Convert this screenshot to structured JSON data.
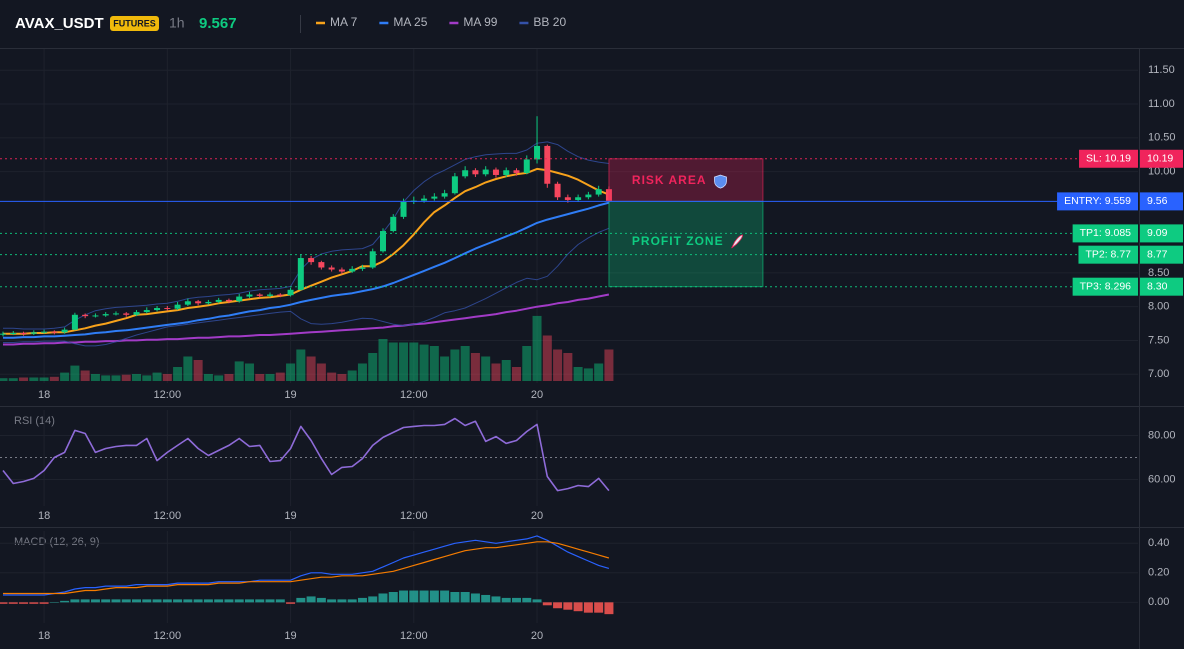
{
  "chart_data": [
    {
      "type": "candlestick",
      "title": "AVAX_USDT",
      "badge": "FUTURES",
      "interval": "1h",
      "last_price": 9.567,
      "categories": [
        null,
        null,
        null,
        null,
        "18",
        null,
        null,
        null,
        null,
        null,
        null,
        null,
        null,
        null,
        null,
        null,
        "12:00",
        null,
        null,
        null,
        null,
        null,
        null,
        null,
        null,
        null,
        null,
        null,
        "19",
        null,
        null,
        null,
        null,
        null,
        null,
        null,
        null,
        null,
        null,
        null,
        "12:00",
        null,
        null,
        null,
        null,
        null,
        null,
        null,
        null,
        null,
        null,
        null,
        "20",
        null,
        null,
        null,
        null,
        null,
        null,
        null
      ],
      "open": [
        7.59,
        7.6,
        7.61,
        7.6,
        7.62,
        7.63,
        7.62,
        7.66,
        7.88,
        7.86,
        7.87,
        7.89,
        7.9,
        7.88,
        7.92,
        7.95,
        7.98,
        7.97,
        8.03,
        8.08,
        8.05,
        8.07,
        8.1,
        8.08,
        8.15,
        8.18,
        8.16,
        8.18,
        8.17,
        8.25,
        8.72,
        8.66,
        8.58,
        8.55,
        8.52,
        8.56,
        8.58,
        8.82,
        9.12,
        9.33,
        9.55,
        9.57,
        9.6,
        9.63,
        9.68,
        9.93,
        10.02,
        9.96,
        10.03,
        9.95,
        10.02,
        9.98,
        10.18,
        10.38,
        9.82,
        9.62,
        9.58,
        9.62,
        9.66,
        9.74
      ],
      "high": [
        7.63,
        7.64,
        7.63,
        7.65,
        7.66,
        7.65,
        7.69,
        7.91,
        7.9,
        7.9,
        7.92,
        7.93,
        7.92,
        7.95,
        7.99,
        8.01,
        8.01,
        8.07,
        8.12,
        8.1,
        8.1,
        8.13,
        8.12,
        8.19,
        8.22,
        8.2,
        8.21,
        8.2,
        8.28,
        8.78,
        8.75,
        8.68,
        8.61,
        8.58,
        8.6,
        8.62,
        8.86,
        9.16,
        9.37,
        9.6,
        9.63,
        9.65,
        9.68,
        9.73,
        9.98,
        10.08,
        10.05,
        10.08,
        10.06,
        10.06,
        10.05,
        10.24,
        10.82,
        10.4,
        9.85,
        9.66,
        9.66,
        9.7,
        9.79,
        9.78
      ],
      "low": [
        7.56,
        7.58,
        7.57,
        7.58,
        7.6,
        7.59,
        7.6,
        7.65,
        7.83,
        7.84,
        7.85,
        7.87,
        7.85,
        7.86,
        7.9,
        7.93,
        7.94,
        7.95,
        8.01,
        8.02,
        8.03,
        8.05,
        8.05,
        8.06,
        8.13,
        8.13,
        8.14,
        8.14,
        8.15,
        8.24,
        8.62,
        8.55,
        8.52,
        8.48,
        8.5,
        8.53,
        8.56,
        8.8,
        9.1,
        9.3,
        9.52,
        9.54,
        9.57,
        9.6,
        9.66,
        9.9,
        9.92,
        9.93,
        9.91,
        9.92,
        9.94,
        9.96,
        10.12,
        9.76,
        9.58,
        9.54,
        9.55,
        9.59,
        9.63,
        9.54
      ],
      "close": [
        7.6,
        7.61,
        7.6,
        7.62,
        7.63,
        7.62,
        7.66,
        7.88,
        7.86,
        7.87,
        7.89,
        7.9,
        7.88,
        7.92,
        7.95,
        7.98,
        7.97,
        8.03,
        8.08,
        8.05,
        8.07,
        8.1,
        8.08,
        8.15,
        8.18,
        8.16,
        8.18,
        8.17,
        8.25,
        8.72,
        8.66,
        8.58,
        8.55,
        8.52,
        8.56,
        8.58,
        8.82,
        9.12,
        9.33,
        9.55,
        9.57,
        9.6,
        9.63,
        9.68,
        9.93,
        10.02,
        9.96,
        10.03,
        9.95,
        10.02,
        9.98,
        10.18,
        10.38,
        9.82,
        9.62,
        9.58,
        9.62,
        9.66,
        9.74,
        9.567
      ],
      "up_color": "#0ecb81",
      "down_color": "#f6465d",
      "volume": [
        4,
        4,
        5,
        5,
        5,
        6,
        12,
        22,
        15,
        10,
        8,
        8,
        9,
        10,
        8,
        12,
        10,
        20,
        35,
        30,
        10,
        8,
        10,
        28,
        25,
        10,
        10,
        12,
        25,
        45,
        35,
        25,
        12,
        10,
        15,
        25,
        40,
        60,
        55,
        55,
        55,
        52,
        50,
        35,
        45,
        50,
        40,
        35,
        25,
        30,
        20,
        50,
        93,
        65,
        45,
        40,
        20,
        18,
        25,
        45
      ],
      "vlim": [
        0,
        100
      ],
      "series": [
        {
          "name": "MA 7",
          "color": "#f7a21b",
          "values": [
            7.6,
            7.6,
            7.6,
            7.61,
            7.61,
            7.62,
            7.62,
            7.65,
            7.68,
            7.72,
            7.75,
            7.79,
            7.83,
            7.88,
            7.89,
            7.91,
            7.93,
            7.95,
            7.98,
            8.0,
            8.02,
            8.05,
            8.07,
            8.09,
            8.11,
            8.13,
            8.14,
            8.16,
            8.18,
            8.25,
            8.31,
            8.37,
            8.43,
            8.48,
            8.53,
            8.6,
            8.6,
            8.67,
            8.78,
            8.91,
            9.07,
            9.25,
            9.4,
            9.5,
            9.61,
            9.71,
            9.77,
            9.84,
            9.89,
            9.93,
            9.96,
            9.98,
            10.04,
            10.02,
            9.98,
            9.94,
            9.88,
            9.8,
            9.72,
            9.66
          ]
        },
        {
          "name": "MA 25",
          "color": "#2f7df6",
          "values": [
            7.54,
            7.54,
            7.55,
            7.55,
            7.56,
            7.56,
            7.57,
            7.58,
            7.59,
            7.61,
            7.62,
            7.64,
            7.65,
            7.67,
            7.69,
            7.71,
            7.73,
            7.75,
            7.77,
            7.8,
            7.82,
            7.85,
            7.87,
            7.9,
            7.93,
            7.95,
            7.98,
            8.0,
            8.03,
            8.07,
            8.1,
            8.13,
            8.16,
            8.18,
            8.2,
            8.23,
            8.26,
            8.3,
            8.35,
            8.41,
            8.47,
            8.53,
            8.59,
            8.65,
            8.72,
            8.79,
            8.86,
            8.92,
            8.98,
            9.04,
            9.1,
            9.17,
            9.24,
            9.29,
            9.33,
            9.37,
            9.41,
            9.45,
            9.5,
            9.54
          ]
        },
        {
          "name": "MA 99",
          "color": "#a23bc7",
          "values": [
            7.44,
            7.44,
            7.45,
            7.45,
            7.46,
            7.46,
            7.47,
            7.47,
            7.48,
            7.48,
            7.49,
            7.49,
            7.5,
            7.5,
            7.51,
            7.51,
            7.52,
            7.52,
            7.53,
            7.54,
            7.54,
            7.55,
            7.56,
            7.56,
            7.57,
            7.58,
            7.58,
            7.59,
            7.6,
            7.61,
            7.62,
            7.63,
            7.64,
            7.65,
            7.66,
            7.67,
            7.68,
            7.69,
            7.71,
            7.72,
            7.74,
            7.75,
            7.77,
            7.79,
            7.81,
            7.83,
            7.85,
            7.87,
            7.89,
            7.92,
            7.94,
            7.97,
            8.0,
            8.02,
            8.05,
            8.07,
            8.1,
            8.12,
            8.15,
            8.18
          ]
        },
        {
          "name": "BB 20",
          "color": "#3451a8",
          "upper": [
            7.68,
            7.68,
            7.67,
            7.67,
            7.67,
            7.68,
            7.7,
            7.8,
            7.88,
            7.94,
            7.97,
            7.99,
            8.0,
            8.01,
            8.02,
            8.04,
            8.05,
            8.08,
            8.12,
            8.14,
            8.15,
            8.17,
            8.18,
            8.2,
            8.23,
            8.25,
            8.26,
            8.27,
            8.3,
            8.55,
            8.7,
            8.78,
            8.82,
            8.84,
            8.85,
            8.86,
            8.92,
            9.1,
            9.3,
            9.55,
            9.72,
            9.85,
            9.95,
            10.02,
            10.1,
            10.18,
            10.22,
            10.25,
            10.26,
            10.27,
            10.27,
            10.32,
            10.42,
            10.44,
            10.4,
            10.3,
            10.22,
            10.17,
            10.14,
            10.12
          ],
          "lower": [
            7.47,
            7.47,
            7.48,
            7.48,
            7.49,
            7.49,
            7.49,
            7.45,
            7.42,
            7.42,
            7.44,
            7.48,
            7.53,
            7.58,
            7.62,
            7.66,
            7.7,
            7.72,
            7.74,
            7.76,
            7.78,
            7.8,
            7.82,
            7.84,
            7.86,
            7.88,
            7.9,
            7.92,
            7.93,
            7.82,
            7.75,
            7.74,
            7.75,
            7.77,
            7.8,
            7.83,
            7.82,
            7.78,
            7.74,
            7.72,
            7.74,
            7.78,
            7.84,
            7.91,
            7.94,
            7.98,
            8.05,
            8.12,
            8.2,
            8.28,
            8.36,
            8.42,
            8.4,
            8.45,
            8.6,
            8.78,
            8.92,
            9.02,
            9.1,
            9.16
          ]
        }
      ],
      "levels": [
        {
          "label": "SL: 10.19",
          "value": 10.19,
          "axis_label": "10.19",
          "color": "#f0245c",
          "style": "dotted"
        },
        {
          "label": "ENTRY: 9.559",
          "value": 9.559,
          "axis_label": "9.56",
          "color": "#2962ff",
          "style": "solid"
        },
        {
          "label": "TP1: 9.085",
          "value": 9.085,
          "axis_label": "9.09",
          "color": "#0ecb81",
          "style": "dotted"
        },
        {
          "label": "TP2: 8.77",
          "value": 8.77,
          "axis_label": "8.77",
          "color": "#0ecb81",
          "style": "dotted"
        },
        {
          "label": "TP3: 8.296",
          "value": 8.296,
          "axis_label": "8.30",
          "color": "#0ecb81",
          "style": "dotted"
        }
      ],
      "zones": [
        {
          "label": "RISK AREA",
          "from": 10.19,
          "to": 9.559,
          "color": "#f0245c"
        },
        {
          "label": "PROFIT ZONE",
          "from": 9.559,
          "to": 8.296,
          "color": "#0ecb81"
        }
      ],
      "ylim": [
        6.87,
        11.83
      ],
      "yticks": [
        {
          "value": 11.5,
          "label": "11.50"
        },
        {
          "value": 11,
          "label": "11.00"
        },
        {
          "value": 10.5,
          "label": "10.50"
        },
        {
          "value": 10,
          "label": "10.00"
        },
        {
          "value": 8.5,
          "label": "8.50"
        },
        {
          "value": 8,
          "label": "8.00"
        },
        {
          "value": 7.5,
          "label": "7.50"
        },
        {
          "value": 7,
          "label": "7.00"
        }
      ],
      "grid": true
    },
    {
      "type": "line",
      "title": "RSI (14)",
      "categories": [
        null,
        null,
        null,
        null,
        "18",
        null,
        null,
        null,
        null,
        null,
        null,
        null,
        null,
        null,
        null,
        null,
        "12:00",
        null,
        null,
        null,
        null,
        null,
        null,
        null,
        null,
        null,
        null,
        null,
        "19",
        null,
        null,
        null,
        null,
        null,
        null,
        null,
        null,
        null,
        null,
        null,
        "12:00",
        null,
        null,
        null,
        null,
        null,
        null,
        null,
        null,
        null,
        null,
        null,
        "20",
        null,
        null,
        null,
        null,
        null,
        null,
        null
      ],
      "values": [
        64.1,
        58.2,
        59.1,
        60.5,
        64.1,
        70,
        72.3,
        82.3,
        80.9,
        72.3,
        74.1,
        75,
        75.5,
        75.5,
        78.6,
        68.6,
        72.3,
        75.5,
        78.6,
        74.1,
        70.9,
        73.2,
        75.5,
        78.6,
        75,
        75.5,
        68.2,
        68.6,
        74.1,
        84.1,
        77.7,
        69.5,
        62.3,
        65.5,
        65.9,
        69.5,
        75.5,
        79.1,
        81.4,
        83.6,
        84.1,
        84.5,
        84.5,
        85,
        87.7,
        84.5,
        86.4,
        77.3,
        79.5,
        76.4,
        77.7,
        81.8,
        85,
        61.4,
        55,
        55.9,
        57.3,
        56.8,
        60.5,
        55
      ],
      "color": "#8e6bd8",
      "hline": 70,
      "ylim": [
        48,
        92
      ],
      "yticks": [
        {
          "value": 80,
          "label": "80.00"
        },
        {
          "value": 60,
          "label": "60.00"
        }
      ],
      "grid": true
    },
    {
      "type": "macd",
      "title": "MACD (12, 26, 9)",
      "categories": [
        null,
        null,
        null,
        null,
        "18",
        null,
        null,
        null,
        null,
        null,
        null,
        null,
        null,
        null,
        null,
        null,
        "12:00",
        null,
        null,
        null,
        null,
        null,
        null,
        null,
        null,
        null,
        null,
        null,
        "19",
        null,
        null,
        null,
        null,
        null,
        null,
        null,
        null,
        null,
        null,
        null,
        "12:00",
        null,
        null,
        null,
        null,
        null,
        null,
        null,
        null,
        null,
        null,
        null,
        "20",
        null,
        null,
        null,
        null,
        null,
        null,
        null
      ],
      "series": [
        {
          "color": "#2962ff",
          "values": [
            0.05,
            0.05,
            0.05,
            0.05,
            0.05,
            0.06,
            0.07,
            0.09,
            0.1,
            0.1,
            0.11,
            0.11,
            0.11,
            0.12,
            0.12,
            0.12,
            0.12,
            0.13,
            0.13,
            0.13,
            0.13,
            0.14,
            0.14,
            0.14,
            0.14,
            0.15,
            0.15,
            0.15,
            0.15,
            0.18,
            0.2,
            0.2,
            0.19,
            0.19,
            0.19,
            0.2,
            0.21,
            0.24,
            0.27,
            0.3,
            0.32,
            0.34,
            0.36,
            0.38,
            0.4,
            0.41,
            0.42,
            0.41,
            0.4,
            0.41,
            0.42,
            0.43,
            0.45,
            0.42,
            0.38,
            0.34,
            0.31,
            0.28,
            0.25,
            0.23
          ]
        },
        {
          "color": "#f57c00",
          "values": [
            0.06,
            0.06,
            0.06,
            0.06,
            0.06,
            0.06,
            0.06,
            0.07,
            0.08,
            0.08,
            0.09,
            0.1,
            0.1,
            0.1,
            0.11,
            0.11,
            0.11,
            0.12,
            0.12,
            0.12,
            0.12,
            0.13,
            0.13,
            0.13,
            0.14,
            0.14,
            0.14,
            0.14,
            0.14,
            0.15,
            0.16,
            0.17,
            0.17,
            0.18,
            0.18,
            0.18,
            0.19,
            0.2,
            0.21,
            0.23,
            0.25,
            0.27,
            0.29,
            0.31,
            0.33,
            0.35,
            0.36,
            0.37,
            0.37,
            0.38,
            0.39,
            0.4,
            0.41,
            0.41,
            0.4,
            0.38,
            0.36,
            0.34,
            0.32,
            0.3
          ]
        }
      ],
      "histogram": {
        "values": [
          -0.01,
          -0.01,
          -0.01,
          -0.01,
          -0.01,
          0,
          0.01,
          0.02,
          0.02,
          0.02,
          0.02,
          0.02,
          0.02,
          0.02,
          0.02,
          0.02,
          0.02,
          0.02,
          0.02,
          0.02,
          0.02,
          0.02,
          0.02,
          0.02,
          0.02,
          0.02,
          0.02,
          0.02,
          -0.01,
          0.03,
          0.04,
          0.03,
          0.02,
          0.02,
          0.02,
          0.03,
          0.04,
          0.06,
          0.07,
          0.08,
          0.08,
          0.08,
          0.08,
          0.08,
          0.07,
          0.07,
          0.06,
          0.05,
          0.04,
          0.03,
          0.03,
          0.03,
          0.02,
          -0.02,
          -0.04,
          -0.05,
          -0.06,
          -0.07,
          -0.07,
          -0.08
        ],
        "up_color": "#26a69a",
        "down_color": "#ef5350"
      },
      "ylim": [
        -0.14,
        0.49
      ],
      "yticks": [
        {
          "value": 0.4,
          "label": "0.40"
        },
        {
          "value": 0.2,
          "label": "0.20"
        },
        {
          "value": 0,
          "label": "0.00",
          "label_only": false
        }
      ],
      "grid": true
    }
  ]
}
